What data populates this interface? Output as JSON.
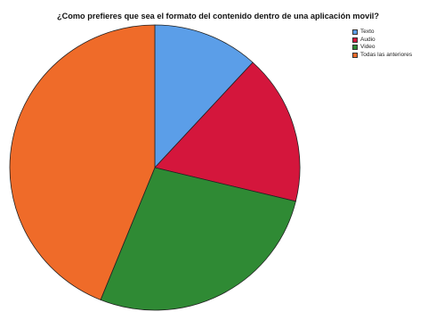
{
  "chart_data": {
    "type": "pie",
    "title": "¿Como prefieres que sea el formato del contenido dentro de una aplicación movil?",
    "categories": [
      "Texto",
      "Audio",
      "Video",
      "Todas las anteriores"
    ],
    "values": [
      11.8,
      17.0,
      27.3,
      43.9
    ],
    "colors": [
      "#5b9ee8",
      "#d4163c",
      "#2f8a34",
      "#ef6b29"
    ],
    "legend_position": "top-right"
  }
}
